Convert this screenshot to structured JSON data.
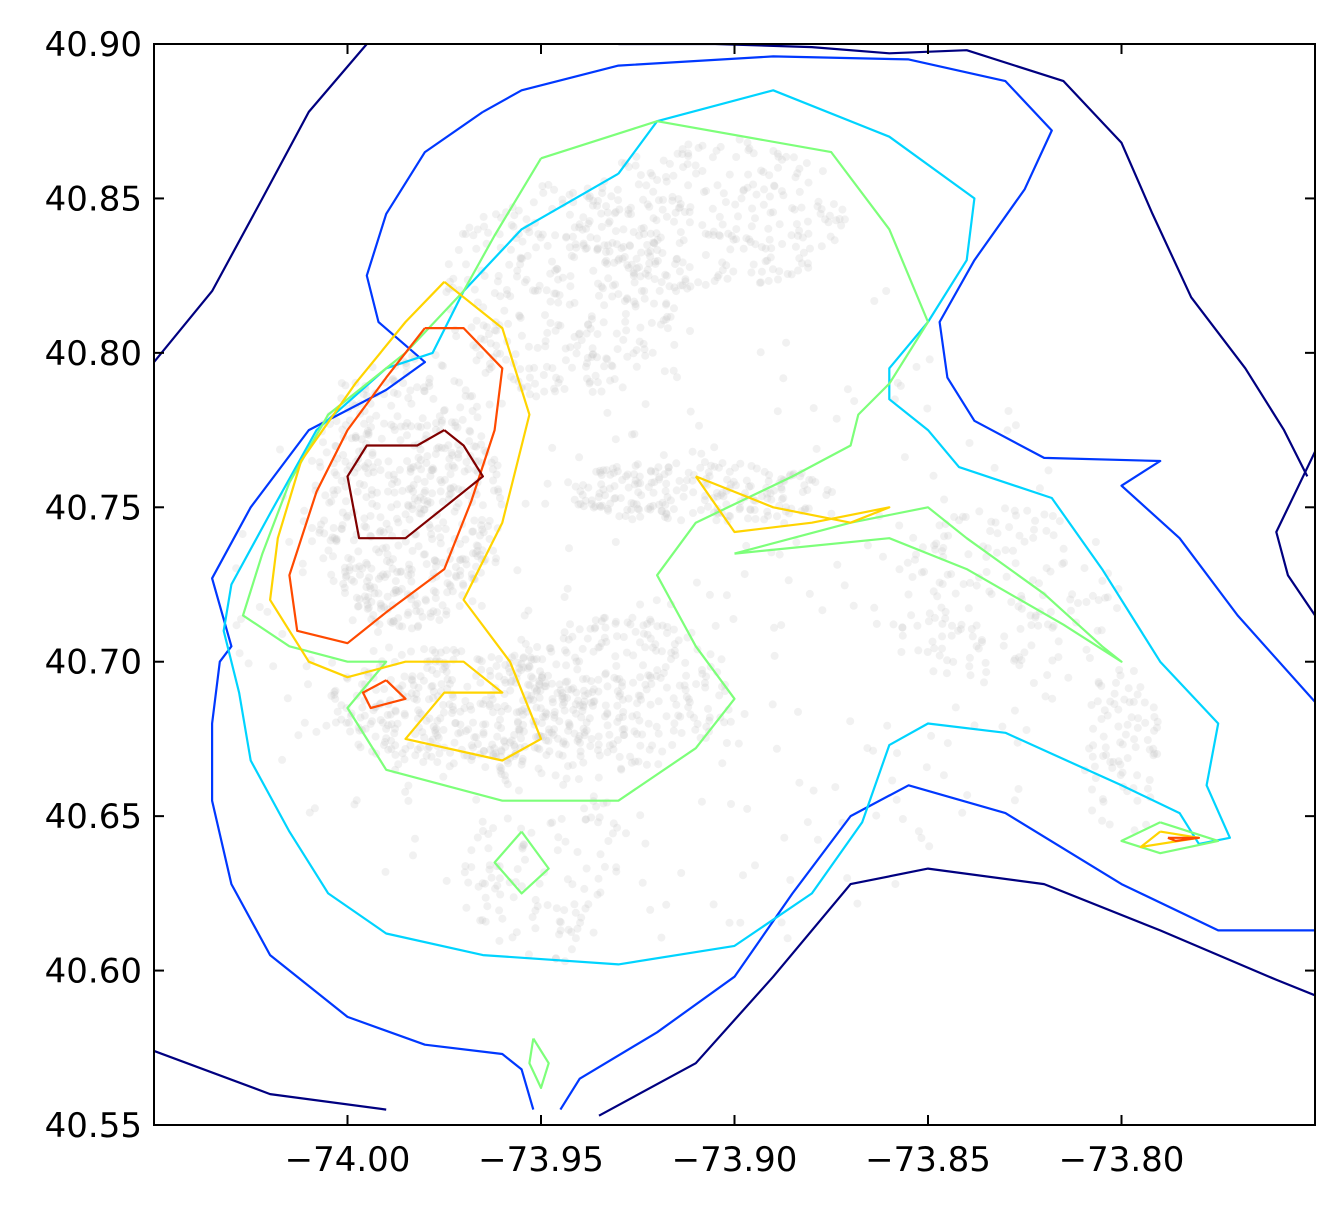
{
  "chart_data": {
    "type": "contour",
    "title": "",
    "xlabel": "",
    "ylabel": "",
    "xlim": [
      -74.05,
      -73.75
    ],
    "ylim": [
      40.55,
      40.9
    ],
    "x_ticks": [
      -74.0,
      -73.95,
      -73.9,
      -73.85,
      -73.8
    ],
    "x_tick_labels": [
      "−74.00",
      "−73.95",
      "−73.90",
      "−73.85",
      "−73.80"
    ],
    "y_ticks": [
      40.55,
      40.6,
      40.65,
      40.7,
      40.75,
      40.8,
      40.85,
      40.9
    ],
    "y_tick_labels": [
      "40.55",
      "40.60",
      "40.65",
      "40.70",
      "40.75",
      "40.80",
      "40.85",
      "40.90"
    ],
    "grid": false,
    "legend": "none",
    "scatter_color": "#c8c8c8",
    "scatter_alpha": 0.25,
    "contour_levels": [
      {
        "level": 1,
        "color": "#000080",
        "paths": [
          [
            [
              -74.05,
              40.797
            ],
            [
              -74.035,
              40.82
            ],
            [
              -74.022,
              40.85
            ],
            [
              -74.01,
              40.878
            ],
            [
              -73.995,
              40.9
            ]
          ],
          [
            [
              -73.93,
              40.9
            ],
            [
              -73.905,
              40.9
            ],
            [
              -73.88,
              40.899
            ],
            [
              -73.86,
              40.897
            ],
            [
              -73.84,
              40.898
            ],
            [
              -73.815,
              40.888
            ],
            [
              -73.8,
              40.868
            ],
            [
              -73.792,
              40.845
            ],
            [
              -73.782,
              40.818
            ],
            [
              -73.768,
              40.795
            ],
            [
              -73.758,
              40.775
            ],
            [
              -73.752,
              40.76
            ]
          ],
          [
            [
              -73.75,
              40.768
            ],
            [
              -73.755,
              40.755
            ],
            [
              -73.76,
              40.742
            ],
            [
              -73.757,
              40.728
            ],
            [
              -73.75,
              40.715
            ]
          ],
          [
            [
              -74.05,
              40.574
            ],
            [
              -74.02,
              40.56
            ],
            [
              -73.99,
              40.555
            ]
          ],
          [
            [
              -73.935,
              40.553
            ],
            [
              -73.91,
              40.57
            ],
            [
              -73.89,
              40.598
            ],
            [
              -73.87,
              40.628
            ],
            [
              -73.85,
              40.633
            ],
            [
              -73.82,
              40.628
            ],
            [
              -73.79,
              40.613
            ],
            [
              -73.76,
              40.597
            ],
            [
              -73.75,
              40.592
            ]
          ]
        ]
      },
      {
        "level": 2,
        "color": "#0038ff",
        "paths": [
          [
            [
              -73.965,
              40.878
            ],
            [
              -73.98,
              40.865
            ],
            [
              -73.99,
              40.845
            ],
            [
              -73.995,
              40.825
            ],
            [
              -73.992,
              40.81
            ],
            [
              -73.98,
              40.797
            ],
            [
              -73.99,
              40.788
            ],
            [
              -74.01,
              40.775
            ],
            [
              -74.025,
              40.75
            ],
            [
              -74.035,
              40.727
            ],
            [
              -74.03,
              40.705
            ],
            [
              -74.033,
              40.7
            ],
            [
              -74.035,
              40.68
            ],
            [
              -74.035,
              40.655
            ],
            [
              -74.03,
              40.628
            ],
            [
              -74.02,
              40.605
            ],
            [
              -74.0,
              40.585
            ],
            [
              -73.98,
              40.576
            ],
            [
              -73.96,
              40.573
            ],
            [
              -73.955,
              40.568
            ],
            [
              -73.952,
              40.555
            ]
          ],
          [
            [
              -73.945,
              40.555
            ],
            [
              -73.94,
              40.565
            ],
            [
              -73.92,
              40.58
            ],
            [
              -73.9,
              40.598
            ],
            [
              -73.885,
              40.625
            ],
            [
              -73.87,
              40.65
            ],
            [
              -73.855,
              40.66
            ],
            [
              -73.83,
              40.651
            ],
            [
              -73.8,
              40.628
            ],
            [
              -73.775,
              40.613
            ],
            [
              -73.75,
              40.613
            ]
          ],
          [
            [
              -73.75,
              40.687
            ],
            [
              -73.77,
              40.715
            ],
            [
              -73.785,
              40.74
            ],
            [
              -73.8,
              40.757
            ],
            [
              -73.79,
              40.765
            ],
            [
              -73.82,
              40.766
            ],
            [
              -73.838,
              40.778
            ],
            [
              -73.845,
              40.792
            ],
            [
              -73.847,
              40.81
            ],
            [
              -73.838,
              40.83
            ],
            [
              -73.825,
              40.853
            ],
            [
              -73.818,
              40.872
            ],
            [
              -73.83,
              40.888
            ],
            [
              -73.855,
              40.895
            ],
            [
              -73.89,
              40.896
            ],
            [
              -73.93,
              40.893
            ],
            [
              -73.955,
              40.885
            ],
            [
              -73.965,
              40.878
            ]
          ]
        ]
      },
      {
        "level": 3,
        "color": "#00d4ff",
        "paths": [
          [
            [
              -73.93,
              40.858
            ],
            [
              -73.955,
              40.84
            ],
            [
              -73.97,
              40.82
            ],
            [
              -73.978,
              40.8
            ],
            [
              -73.99,
              40.795
            ],
            [
              -74.008,
              40.775
            ],
            [
              -74.02,
              40.748
            ],
            [
              -74.03,
              40.725
            ],
            [
              -74.032,
              40.71
            ],
            [
              -74.028,
              40.69
            ],
            [
              -74.025,
              40.668
            ],
            [
              -74.015,
              40.645
            ],
            [
              -74.005,
              40.625
            ],
            [
              -73.99,
              40.612
            ],
            [
              -73.965,
              40.605
            ],
            [
              -73.93,
              40.602
            ],
            [
              -73.9,
              40.608
            ],
            [
              -73.88,
              40.625
            ],
            [
              -73.867,
              40.648
            ],
            [
              -73.86,
              40.673
            ],
            [
              -73.85,
              40.68
            ],
            [
              -73.83,
              40.677
            ],
            [
              -73.8,
              40.66
            ],
            [
              -73.785,
              40.651
            ],
            [
              -73.78,
              40.641
            ],
            [
              -73.772,
              40.643
            ],
            [
              -73.778,
              40.66
            ],
            [
              -73.775,
              40.68
            ],
            [
              -73.79,
              40.7
            ],
            [
              -73.805,
              40.73
            ],
            [
              -73.818,
              40.753
            ],
            [
              -73.842,
              40.763
            ],
            [
              -73.85,
              40.775
            ],
            [
              -73.86,
              40.785
            ],
            [
              -73.86,
              40.795
            ],
            [
              -73.85,
              40.81
            ],
            [
              -73.84,
              40.83
            ],
            [
              -73.838,
              40.85
            ],
            [
              -73.86,
              40.87
            ],
            [
              -73.89,
              40.885
            ],
            [
              -73.92,
              40.875
            ],
            [
              -73.93,
              40.858
            ]
          ]
        ]
      },
      {
        "level": 4,
        "color": "#7dff7a",
        "paths": [
          [
            [
              -73.95,
              40.863
            ],
            [
              -73.962,
              40.838
            ],
            [
              -73.97,
              40.82
            ],
            [
              -73.985,
              40.8
            ],
            [
              -74.005,
              40.78
            ],
            [
              -74.015,
              40.758
            ],
            [
              -74.022,
              40.735
            ],
            [
              -74.027,
              40.715
            ],
            [
              -74.015,
              40.705
            ],
            [
              -74.0,
              40.7
            ],
            [
              -73.99,
              40.7
            ],
            [
              -74.0,
              40.685
            ],
            [
              -73.99,
              40.665
            ],
            [
              -73.96,
              40.655
            ],
            [
              -73.93,
              40.655
            ],
            [
              -73.91,
              40.672
            ],
            [
              -73.9,
              40.688
            ],
            [
              -73.91,
              40.705
            ],
            [
              -73.92,
              40.728
            ],
            [
              -73.91,
              40.745
            ],
            [
              -73.885,
              40.76
            ],
            [
              -73.87,
              40.77
            ],
            [
              -73.868,
              40.78
            ],
            [
              -73.86,
              40.79
            ],
            [
              -73.85,
              40.81
            ],
            [
              -73.86,
              40.84
            ],
            [
              -73.875,
              40.865
            ],
            [
              -73.92,
              40.875
            ],
            [
              -73.95,
              40.863
            ]
          ],
          [
            [
              -73.9,
              40.735
            ],
            [
              -73.87,
              40.745
            ],
            [
              -73.85,
              40.75
            ],
            [
              -73.84,
              40.74
            ],
            [
              -73.82,
              40.722
            ],
            [
              -73.805,
              40.705
            ],
            [
              -73.8,
              40.7
            ],
            [
              -73.815,
              40.712
            ],
            [
              -73.84,
              40.73
            ],
            [
              -73.86,
              40.74
            ],
            [
              -73.9,
              40.735
            ]
          ],
          [
            [
              -73.79,
              40.648
            ],
            [
              -73.775,
              40.642
            ],
            [
              -73.79,
              40.638
            ],
            [
              -73.8,
              40.642
            ],
            [
              -73.79,
              40.648
            ]
          ],
          [
            [
              -73.952,
              40.578
            ],
            [
              -73.948,
              40.57
            ],
            [
              -73.95,
              40.562
            ],
            [
              -73.953,
              40.57
            ],
            [
              -73.952,
              40.578
            ]
          ],
          [
            [
              -73.955,
              40.645
            ],
            [
              -73.948,
              40.633
            ],
            [
              -73.955,
              40.625
            ],
            [
              -73.962,
              40.635
            ],
            [
              -73.955,
              40.645
            ]
          ]
        ]
      },
      {
        "level": 5,
        "color": "#ffd400",
        "paths": [
          [
            [
              -73.975,
              40.823
            ],
            [
              -73.985,
              40.81
            ],
            [
              -73.998,
              40.79
            ],
            [
              -74.012,
              40.765
            ],
            [
              -74.018,
              40.74
            ],
            [
              -74.02,
              40.72
            ],
            [
              -74.01,
              40.7
            ],
            [
              -74.0,
              40.695
            ],
            [
              -73.985,
              40.7
            ],
            [
              -73.97,
              40.7
            ],
            [
              -73.96,
              40.69
            ],
            [
              -73.975,
              40.69
            ],
            [
              -73.985,
              40.675
            ],
            [
              -73.96,
              40.668
            ],
            [
              -73.95,
              40.675
            ],
            [
              -73.958,
              40.7
            ],
            [
              -73.97,
              40.72
            ],
            [
              -73.96,
              40.745
            ],
            [
              -73.953,
              40.78
            ],
            [
              -73.96,
              40.808
            ],
            [
              -73.975,
              40.823
            ]
          ],
          [
            [
              -73.91,
              40.76
            ],
            [
              -73.89,
              40.75
            ],
            [
              -73.87,
              40.745
            ],
            [
              -73.86,
              40.75
            ],
            [
              -73.88,
              40.745
            ],
            [
              -73.9,
              40.742
            ],
            [
              -73.91,
              40.76
            ]
          ],
          [
            [
              -73.79,
              40.645
            ],
            [
              -73.78,
              40.643
            ],
            [
              -73.795,
              40.64
            ],
            [
              -73.79,
              40.645
            ]
          ]
        ]
      },
      {
        "level": 6,
        "color": "#ff4a00",
        "paths": [
          [
            [
              -73.98,
              40.808
            ],
            [
              -73.99,
              40.792
            ],
            [
              -74.0,
              40.775
            ],
            [
              -74.008,
              40.755
            ],
            [
              -74.015,
              40.728
            ],
            [
              -74.013,
              40.71
            ],
            [
              -74.0,
              40.706
            ],
            [
              -73.99,
              40.716
            ],
            [
              -73.975,
              40.73
            ],
            [
              -73.968,
              40.752
            ],
            [
              -73.962,
              40.775
            ],
            [
              -73.96,
              40.795
            ],
            [
              -73.97,
              40.808
            ],
            [
              -73.98,
              40.808
            ]
          ],
          [
            [
              -73.99,
              40.694
            ],
            [
              -73.985,
              40.688
            ],
            [
              -73.994,
              40.685
            ],
            [
              -73.996,
              40.69
            ],
            [
              -73.99,
              40.694
            ]
          ],
          [
            [
              -73.788,
              40.643
            ],
            [
              -73.78,
              40.643
            ],
            [
              -73.786,
              40.642
            ],
            [
              -73.788,
              40.643
            ]
          ]
        ]
      },
      {
        "level": 7,
        "color": "#800000",
        "paths": [
          [
            [
              -73.975,
              40.775
            ],
            [
              -73.982,
              40.77
            ],
            [
              -73.995,
              40.77
            ],
            [
              -74.0,
              40.76
            ],
            [
              -73.997,
              40.74
            ],
            [
              -73.985,
              40.74
            ],
            [
              -73.975,
              40.75
            ],
            [
              -73.965,
              40.76
            ],
            [
              -73.97,
              40.77
            ],
            [
              -73.975,
              40.775
            ]
          ]
        ]
      }
    ]
  }
}
